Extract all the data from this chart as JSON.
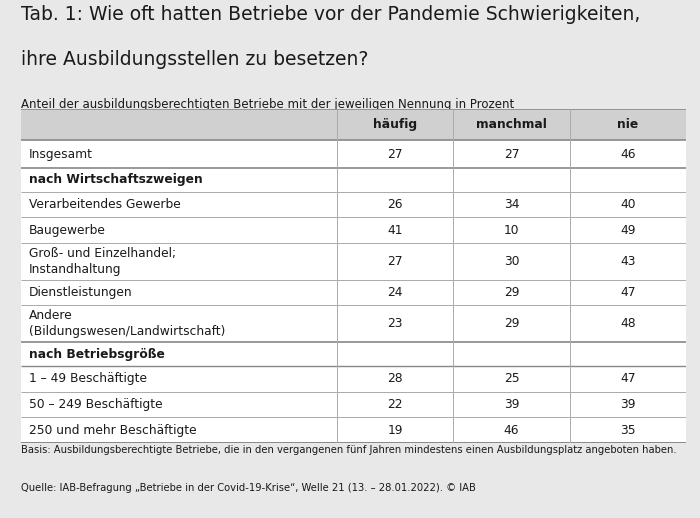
{
  "title_line1": "Tab. 1: Wie oft hatten Betriebe vor der Pandemie Schwierigkeiten,",
  "title_line2": "ihre Ausbildungsstellen zu besetzen?",
  "subtitle": "Anteil der ausbildungsberechtigten Betriebe mit der jeweiligen Nennung in Prozent",
  "col_headers": [
    "",
    "häufig",
    "manchmal",
    "nie"
  ],
  "rows": [
    {
      "label": "Insgesamt",
      "values": [
        "27",
        "27",
        "46"
      ],
      "bold": false,
      "section_header": false
    },
    {
      "label": "nach Wirtschaftszweigen",
      "values": [
        "",
        "",
        ""
      ],
      "bold": true,
      "section_header": true
    },
    {
      "label": "Verarbeitendes Gewerbe",
      "values": [
        "26",
        "34",
        "40"
      ],
      "bold": false,
      "section_header": false
    },
    {
      "label": "Baugewerbe",
      "values": [
        "41",
        "10",
        "49"
      ],
      "bold": false,
      "section_header": false
    },
    {
      "label": "Groß- und Einzelhandel;\nInstandhaltung",
      "values": [
        "27",
        "30",
        "43"
      ],
      "bold": false,
      "section_header": false
    },
    {
      "label": "Dienstleistungen",
      "values": [
        "24",
        "29",
        "47"
      ],
      "bold": false,
      "section_header": false
    },
    {
      "label": "Andere\n(Bildungswesen/Landwirtschaft)",
      "values": [
        "23",
        "29",
        "48"
      ],
      "bold": false,
      "section_header": false
    },
    {
      "label": "nach Betriebsgröße",
      "values": [
        "",
        "",
        ""
      ],
      "bold": true,
      "section_header": true
    },
    {
      "label": "1 – 49 Beschäftigte",
      "values": [
        "28",
        "25",
        "47"
      ],
      "bold": false,
      "section_header": false
    },
    {
      "label": "50 – 249 Beschäftigte",
      "values": [
        "22",
        "39",
        "39"
      ],
      "bold": false,
      "section_header": false
    },
    {
      "label": "250 und mehr Beschäftigte",
      "values": [
        "19",
        "46",
        "35"
      ],
      "bold": false,
      "section_header": false
    }
  ],
  "footnote_line1": "Basis: Ausbildungsberechtigte Betriebe, die in den vergangenen fünf Jahren mindestens einen Ausbildungsplatz angeboten haben.",
  "footnote_line2": "Quelle: IAB-Befragung „Betriebe in der Covid-19-Krise“, Welle 21 (13. – 28.01.2022). © IAB",
  "bg_color": "#e8e8e8",
  "table_bg": "#ffffff",
  "header_bg": "#d0d0d0",
  "section_header_bg": "#ffffff",
  "border_color": "#aaaaaa",
  "dark_border": "#888888",
  "text_color": "#1a1a1a",
  "title_fontsize": 13.5,
  "subtitle_fontsize": 8.5,
  "table_fontsize": 8.8,
  "footnote_fontsize": 7.2
}
